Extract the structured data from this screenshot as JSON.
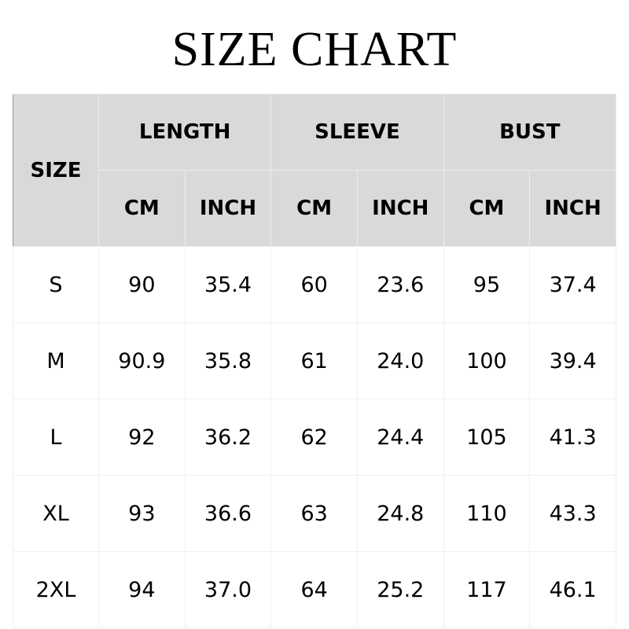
{
  "title": "SIZE CHART",
  "header": {
    "size": "SIZE",
    "groups": [
      "LENGTH",
      "SLEEVE",
      "BUST"
    ],
    "units": [
      "CM",
      "INCH",
      "CM",
      "INCH",
      "CM",
      "INCH"
    ]
  },
  "rows": [
    [
      "S",
      "90",
      "35.4",
      "60",
      "23.6",
      "95",
      "37.4"
    ],
    [
      "M",
      "90.9",
      "35.8",
      "61",
      "24.0",
      "100",
      "39.4"
    ],
    [
      "L",
      "92",
      "36.2",
      "62",
      "24.4",
      "105",
      "41.3"
    ],
    [
      "XL",
      "93",
      "36.6",
      "63",
      "24.8",
      "110",
      "43.3"
    ],
    [
      "2XL",
      "94",
      "37.0",
      "64",
      "25.2",
      "117",
      "46.1"
    ]
  ]
}
